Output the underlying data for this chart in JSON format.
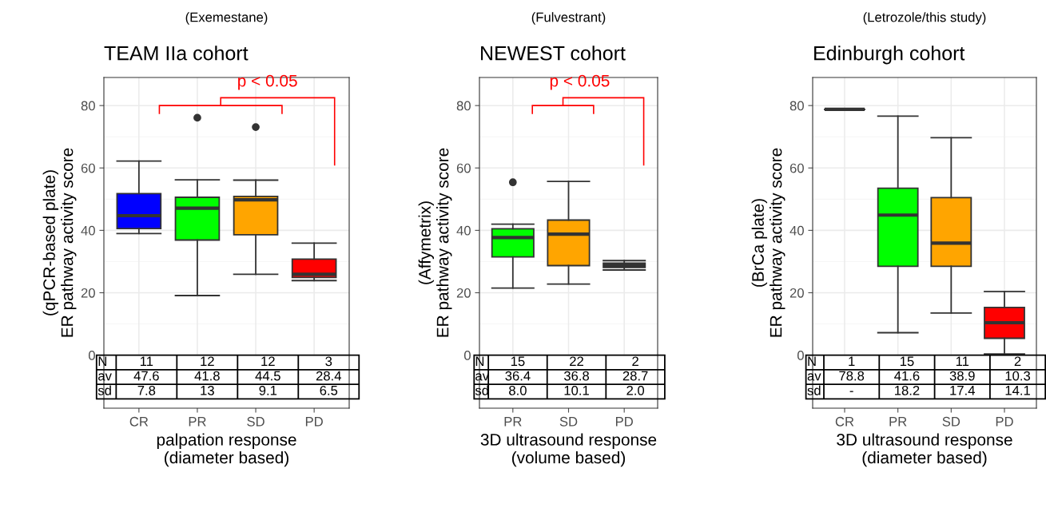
{
  "chart_data": [
    {
      "type": "box",
      "subtitle": "(Exemestane)",
      "title": "TEAM IIa cohort",
      "ylabel": "(qPCR-based plate)\nER pathway activity score",
      "xlabel": "palpation response\n(diameter based)",
      "categories": [
        "CR",
        "PR",
        "SD",
        "PD"
      ],
      "colors": [
        "#0000ff",
        "#00ff00",
        "#ffa500",
        "#ff0000"
      ],
      "ylim": [
        -17,
        89
      ],
      "yticks": [
        0,
        20,
        40,
        60,
        80
      ],
      "grid": true,
      "boxes": [
        {
          "low": 39.0,
          "q1": 40.6,
          "median": 44.7,
          "q3": 51.8,
          "high": 62.2
        },
        {
          "low": 19.1,
          "q1": 36.9,
          "median": 47.1,
          "q3": 50.6,
          "high": 56.2,
          "outliers": [
            76.1
          ]
        },
        {
          "low": 25.9,
          "q1": 38.6,
          "median": 49.8,
          "q3": 50.9,
          "high": 56.1,
          "outliers": [
            73.1
          ]
        },
        {
          "low": 23.9,
          "q1": 24.9,
          "median": 25.9,
          "q3": 30.8,
          "high": 35.9
        }
      ],
      "annotations": [
        "p < 0.05",
        "N",
        "11",
        "12",
        "12",
        "3",
        "av",
        "47.6",
        "41.8",
        "44.5",
        "28.4",
        "sd",
        "7.8",
        "13",
        "9.1",
        "6.5"
      ]
    },
    {
      "type": "box",
      "subtitle": "(Fulvestrant)",
      "title": "NEWEST cohort",
      "ylabel": "(Affymetrix)\nER pathway activity score",
      "xlabel": "3D ultrasound response\n(volume based)",
      "categories": [
        "PR",
        "SD",
        "PD"
      ],
      "colors": [
        "#00ff00",
        "#ffa500",
        "#ff0000"
      ],
      "ylim": [
        -17,
        89
      ],
      "yticks": [
        0,
        20,
        40,
        60,
        80
      ],
      "grid": true,
      "boxes": [
        {
          "low": 21.5,
          "q1": 31.5,
          "median": 37.7,
          "q3": 40.5,
          "high": 42.0,
          "outliers": [
            55.4
          ]
        },
        {
          "low": 22.8,
          "q1": 28.7,
          "median": 38.8,
          "q3": 43.3,
          "high": 55.7
        },
        {
          "low": 27.3,
          "q1": 28.1,
          "median": 28.8,
          "q3": 29.5,
          "high": 30.3
        }
      ],
      "annotations": [
        "p < 0.05",
        "N",
        "15",
        "22",
        "2",
        "av",
        "36.4",
        "36.8",
        "28.7",
        "sd",
        "8.0",
        "10.1",
        "2.0"
      ]
    },
    {
      "type": "box",
      "subtitle": "(Letrozole/this study)",
      "title": "Edinburgh cohort",
      "ylabel": "(BrCa plate)\nER pathway activity score",
      "xlabel": "3D ultrasound response\n(diameter based)",
      "categories": [
        "CR",
        "PR",
        "SD",
        "PD"
      ],
      "colors": [
        null,
        "#00ff00",
        "#ffa500",
        "#ff0000"
      ],
      "ylim": [
        -17,
        89
      ],
      "yticks": [
        0,
        20,
        40,
        60,
        80
      ],
      "grid": true,
      "boxes": [
        {
          "low": 78.8,
          "q1": 78.8,
          "median": 78.8,
          "q3": 78.8,
          "high": 78.8
        },
        {
          "low": 7.2,
          "q1": 28.5,
          "median": 44.9,
          "q3": 53.5,
          "high": 76.6
        },
        {
          "low": 13.5,
          "q1": 28.5,
          "median": 35.9,
          "q3": 50.5,
          "high": 69.7
        },
        {
          "low": 0.4,
          "q1": 5.4,
          "median": 10.4,
          "q3": 15.3,
          "high": 20.4
        }
      ],
      "annotations": [
        "N",
        "1",
        "15",
        "11",
        "2",
        "av",
        "78.8",
        "41.6",
        "38.9",
        "10.3",
        "sd",
        "-",
        "18.2",
        "17.4",
        "14.1"
      ]
    }
  ]
}
